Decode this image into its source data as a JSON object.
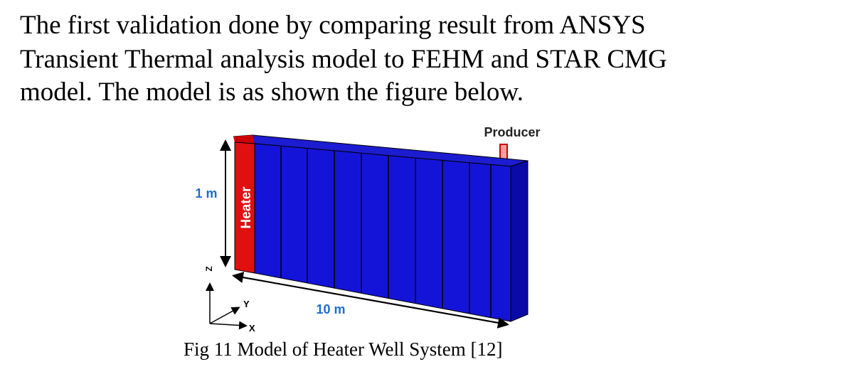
{
  "paragraph": {
    "lines": [
      "The first validation done by comparing result from ANSYS",
      "Transient Thermal analysis model to FEHM and STAR CMG",
      "model. The model is as shown the figure below."
    ]
  },
  "figure": {
    "labels": {
      "producer": "Producer",
      "height": "1 m",
      "heater": "Heater",
      "axis_z": "Z",
      "axis_y": "Y",
      "axis_x": "X",
      "length": "10 m"
    },
    "caption": "Fig 11 Model of Heater Well System [12]"
  }
}
